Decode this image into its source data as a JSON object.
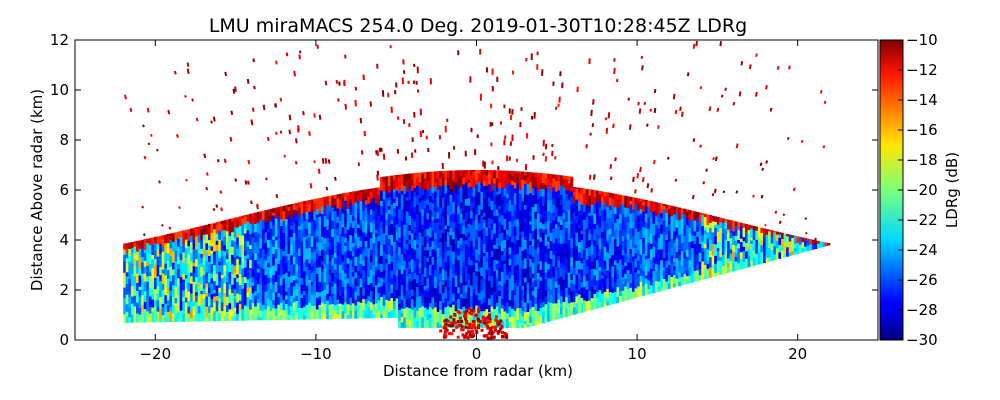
{
  "chart_data": {
    "type": "heatmap",
    "title": "LMU miraMACS 254.0 Deg. 2019-01-30T10:28:45Z  LDRg",
    "xlabel": "Distance from radar (km)",
    "ylabel": "Distance Above radar  (km)",
    "xlim": [
      -25,
      25
    ],
    "ylim": [
      0,
      12
    ],
    "xticks": [
      -20,
      -10,
      0,
      10,
      20
    ],
    "xtick_labels": [
      "−20",
      "−10",
      "0",
      "10",
      "20"
    ],
    "yticks": [
      0,
      2,
      4,
      6,
      8,
      10,
      12
    ],
    "ytick_labels": [
      "0",
      "2",
      "4",
      "6",
      "8",
      "10",
      "12"
    ],
    "colorbar": {
      "label": "LDRg (dB)",
      "range": [
        -30,
        -10
      ],
      "ticks": [
        -30,
        -28,
        -26,
        -24,
        -22,
        -20,
        -18,
        -16,
        -14,
        -12,
        -10
      ],
      "tick_labels": [
        "−30",
        "−28",
        "−26",
        "−24",
        "−22",
        "−20",
        "−18",
        "−16",
        "−14",
        "−12",
        "−10"
      ],
      "colormap": "jet"
    },
    "field": {
      "main_body_ldr_db": -27,
      "fringe_ldr_db": -21,
      "cloud_top_ldr_db": -12,
      "near_radar_ldr_db": -10,
      "noise_ldr_db": -10,
      "max_range_km": 22
    }
  }
}
